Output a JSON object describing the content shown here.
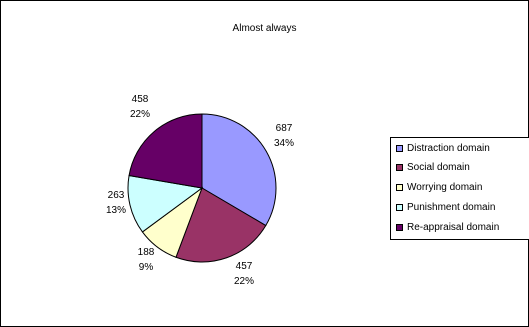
{
  "chart_data": {
    "type": "pie",
    "title": "Almost always",
    "categories": [
      "Distraction domain",
      "Social  domain",
      "Worrying domain",
      "Punishment  domain",
      "Re-appraisal  domain"
    ],
    "values": [
      687,
      457,
      188,
      263,
      458
    ],
    "percent_labels": [
      "34%",
      "22%",
      "9%",
      "13%",
      "22%"
    ],
    "value_labels": [
      "687",
      "457",
      "188",
      "263",
      "458"
    ],
    "colors": [
      "#9999ff",
      "#993366",
      "#ffffcc",
      "#ccffff",
      "#660066"
    ],
    "legend_position": "right",
    "grid": false
  }
}
